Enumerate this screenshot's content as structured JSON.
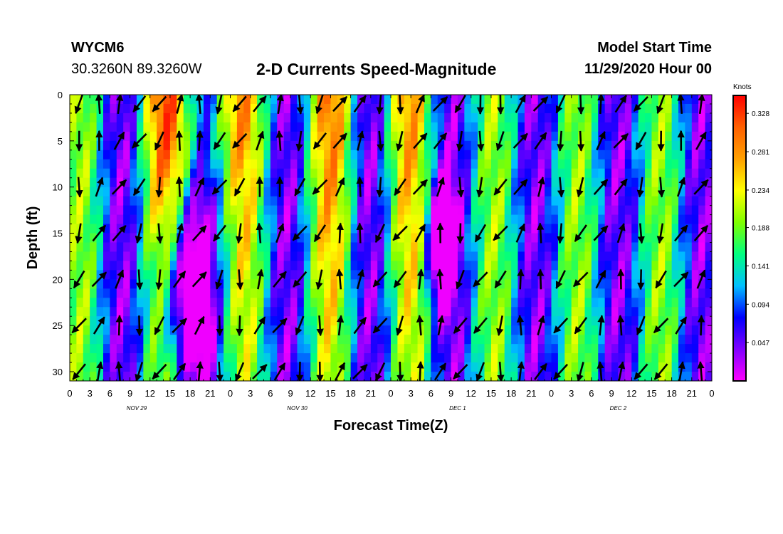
{
  "header": {
    "station": "WYCM6",
    "coordinates": "30.3260N 89.3260W",
    "title": "2-D Currents Speed-Magnitude",
    "model_start_label": "Model Start Time",
    "model_start_value": "11/29/2020 Hour 00"
  },
  "chart_data": {
    "type": "heatmap",
    "title": "2-D Currents Speed-Magnitude",
    "xlabel": "Forecast Time(Z)",
    "ylabel": "Depth (ft)",
    "x_tick_labels": [
      "0",
      "3",
      "6",
      "9",
      "12",
      "15",
      "18",
      "21",
      "0",
      "3",
      "6",
      "9",
      "12",
      "15",
      "18",
      "21",
      "0",
      "3",
      "6",
      "9",
      "12",
      "15",
      "18",
      "21",
      "0",
      "3",
      "6",
      "9",
      "12",
      "15",
      "18",
      "21",
      "0"
    ],
    "day_labels": [
      "NOV 29",
      "NOV 30",
      "DEC 1",
      "DEC 2"
    ],
    "y_ticks": [
      0,
      5,
      10,
      15,
      20,
      25,
      30
    ],
    "ylim": [
      0,
      31
    ],
    "xlim": [
      0,
      96
    ],
    "colorbar": {
      "unit": "Knots",
      "ticks": [
        "0.328",
        "0.281",
        "0.234",
        "0.188",
        "0.141",
        "0.094",
        "0.047"
      ],
      "range": [
        0,
        0.35
      ],
      "colors": [
        "#ff00ff",
        "#8000ff",
        "#0000ff",
        "#00c0ff",
        "#00ff80",
        "#80ff00",
        "#ffff00",
        "#ffa000",
        "#ff6000",
        "#ff0000"
      ]
    },
    "vector_depths_ft": [
      1,
      5,
      10,
      15,
      20,
      25,
      30
    ],
    "vector_hours": [
      0,
      3,
      6,
      9,
      12,
      15,
      18,
      21,
      24,
      27,
      30,
      33,
      36,
      39,
      42,
      45,
      48,
      51,
      54,
      57,
      60,
      63,
      66,
      69,
      72,
      75,
      78,
      81,
      84,
      87,
      90,
      93
    ]
  }
}
